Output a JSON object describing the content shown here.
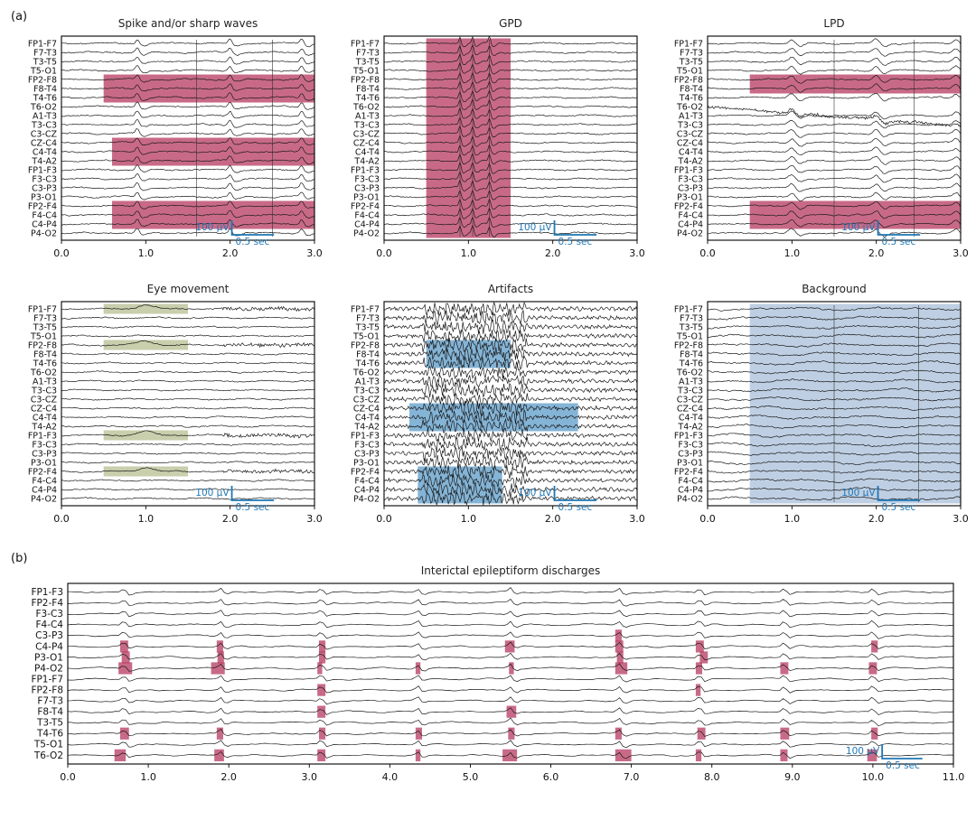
{
  "panel_labels": {
    "a": "(a)",
    "b": "(b)"
  },
  "chart_data": [
    {
      "type": "line",
      "title": "Spike and/or sharp waves",
      "xlim": [
        0,
        3
      ],
      "xticks": [
        "0.0",
        "1.0",
        "2.0",
        "3.0"
      ],
      "channels": [
        "FP1-F7",
        "F7-T3",
        "T3-T5",
        "T5-O1",
        "FP2-F8",
        "F8-T4",
        "T4-T6",
        "T6-O2",
        "A1-T3",
        "T3-C3",
        "C3-CZ",
        "CZ-C4",
        "C4-T4",
        "T4-A2",
        "FP1-F3",
        "F3-C3",
        "C3-P3",
        "P3-O1",
        "FP2-F4",
        "F4-C4",
        "C4-P4",
        "P4-O2"
      ],
      "highlights": [
        {
          "x0": 0.5,
          "x1": 3.0,
          "ch0": 4,
          "ch1": 6,
          "color": "#b5385f"
        },
        {
          "x0": 0.6,
          "x1": 3.0,
          "ch0": 11,
          "ch1": 13,
          "color": "#b5385f"
        },
        {
          "x0": 0.6,
          "x1": 3.0,
          "ch0": 18,
          "ch1": 20,
          "color": "#b5385f"
        }
      ],
      "events": [
        0.9,
        2.0,
        2.85
      ],
      "markers": [
        1.6,
        2.5
      ],
      "scalebar": {
        "amp": "100 μV",
        "time": "0.5 sec"
      }
    },
    {
      "type": "line",
      "title": "GPD",
      "xlim": [
        0,
        3
      ],
      "xticks": [
        "0.0",
        "1.0",
        "2.0",
        "3.0"
      ],
      "channels": [
        "FP1-F7",
        "F7-T3",
        "T3-T5",
        "T5-O1",
        "FP2-F8",
        "F8-T4",
        "T4-T6",
        "T6-O2",
        "A1-T3",
        "T3-C3",
        "C3-CZ",
        "CZ-C4",
        "C4-T4",
        "T4-A2",
        "FP1-F3",
        "F3-C3",
        "C3-P3",
        "P3-O1",
        "FP2-F4",
        "F4-C4",
        "C4-P4",
        "P4-O2"
      ],
      "highlights": [
        {
          "x0": 0.5,
          "x1": 1.5,
          "ch0": 0,
          "ch1": 21,
          "color": "#b5385f"
        }
      ],
      "events": [
        0.9,
        1.05,
        1.25
      ],
      "markers": [
        0.9,
        1.05,
        1.25
      ],
      "scalebar": {
        "amp": "100 μV",
        "time": "0.5 sec"
      }
    },
    {
      "type": "line",
      "title": "LPD",
      "xlim": [
        0,
        3
      ],
      "xticks": [
        "0.0",
        "1.0",
        "2.0",
        "3.0"
      ],
      "channels": [
        "FP1-F7",
        "F7-T3",
        "T3-T5",
        "T5-O1",
        "FP2-F8",
        "F8-T4",
        "T4-T6",
        "T6-O2",
        "A1-T3",
        "T3-C3",
        "C3-CZ",
        "CZ-C4",
        "C4-T4",
        "T4-A2",
        "FP1-F3",
        "F3-C3",
        "C3-P3",
        "P3-O1",
        "FP2-F4",
        "F4-C4",
        "C4-P4",
        "P4-O2"
      ],
      "highlights": [
        {
          "x0": 0.5,
          "x1": 3.0,
          "ch0": 4,
          "ch1": 5,
          "color": "#b5385f"
        },
        {
          "x0": 0.5,
          "x1": 3.0,
          "ch0": 18,
          "ch1": 20,
          "color": "#b5385f"
        }
      ],
      "events": [
        1.0,
        2.0,
        2.95
      ],
      "markers": [
        1.5,
        2.45
      ],
      "scalebar": {
        "amp": "100 μV",
        "time": "0.5 sec"
      }
    },
    {
      "type": "line",
      "title": "Eye movement",
      "xlim": [
        0,
        3
      ],
      "xticks": [
        "0.0",
        "1.0",
        "2.0",
        "3.0"
      ],
      "channels": [
        "FP1-F7",
        "F7-T3",
        "T3-T5",
        "T5-O1",
        "FP2-F8",
        "F8-T4",
        "T4-T6",
        "T6-O2",
        "A1-T3",
        "T3-C3",
        "C3-CZ",
        "CZ-C4",
        "C4-T4",
        "T4-A2",
        "FP1-F3",
        "F3-C3",
        "C3-P3",
        "P3-O1",
        "FP2-F4",
        "F4-C4",
        "C4-P4",
        "P4-O2"
      ],
      "highlights": [
        {
          "x0": 0.5,
          "x1": 1.5,
          "ch0": 0,
          "ch1": 0,
          "color": "#b7bd90"
        },
        {
          "x0": 0.5,
          "x1": 1.5,
          "ch0": 4,
          "ch1": 4,
          "color": "#b7bd90"
        },
        {
          "x0": 0.5,
          "x1": 1.5,
          "ch0": 14,
          "ch1": 14,
          "color": "#b7bd90"
        },
        {
          "x0": 0.5,
          "x1": 1.5,
          "ch0": 18,
          "ch1": 18,
          "color": "#b7bd90"
        }
      ],
      "events": [
        1.0,
        1.9
      ],
      "markers": [],
      "scalebar": {
        "amp": "100 μV",
        "time": "0.5 sec"
      }
    },
    {
      "type": "line",
      "title": "Artifacts",
      "xlim": [
        0,
        3
      ],
      "xticks": [
        "0.0",
        "1.0",
        "2.0",
        "3.0"
      ],
      "channels": [
        "FP1-F7",
        "F7-T3",
        "T3-T5",
        "T5-O1",
        "FP2-F8",
        "F8-T4",
        "T4-T6",
        "T6-O2",
        "A1-T3",
        "T3-C3",
        "C3-CZ",
        "CZ-C4",
        "C4-T4",
        "T4-A2",
        "FP1-F3",
        "F3-C3",
        "C3-P3",
        "P3-O1",
        "FP2-F4",
        "F4-C4",
        "C4-P4",
        "P4-O2"
      ],
      "highlights": [
        {
          "x0": 0.5,
          "x1": 1.5,
          "ch0": 4,
          "ch1": 6,
          "color": "#5b9bc8"
        },
        {
          "x0": 0.3,
          "x1": 2.3,
          "ch0": 11,
          "ch1": 13,
          "color": "#5b9bc8"
        },
        {
          "x0": 0.4,
          "x1": 1.4,
          "ch0": 18,
          "ch1": 21,
          "color": "#5b9bc8"
        }
      ],
      "events": [],
      "markers": [],
      "scalebar": {
        "amp": "100 μV",
        "time": "0.5 sec"
      }
    },
    {
      "type": "line",
      "title": "Background",
      "xlim": [
        0,
        3
      ],
      "xticks": [
        "0.0",
        "1.0",
        "2.0",
        "3.0"
      ],
      "channels": [
        "FP1-F7",
        "F7-T3",
        "T3-T5",
        "T5-O1",
        "FP2-F8",
        "F8-T4",
        "T4-T6",
        "T6-O2",
        "A1-T3",
        "T3-C3",
        "C3-CZ",
        "CZ-C4",
        "C4-T4",
        "T4-A2",
        "FP1-F3",
        "F3-C3",
        "C3-P3",
        "P3-O1",
        "FP2-F4",
        "F4-C4",
        "C4-P4",
        "P4-O2"
      ],
      "highlights": [
        {
          "x0": 0.5,
          "x1": 3.0,
          "ch0": 0,
          "ch1": 21,
          "color": "#a9bfd9"
        }
      ],
      "events": [],
      "markers": [
        1.5,
        2.5
      ],
      "scalebar": {
        "amp": "100 μV",
        "time": "0.5 sec"
      }
    },
    {
      "type": "line",
      "title": "Interictal epileptiform discharges",
      "xlim": [
        0,
        11
      ],
      "xticks": [
        "0.0",
        "1.0",
        "2.0",
        "3.0",
        "4.0",
        "5.0",
        "6.0",
        "7.0",
        "8.0",
        "9.0",
        "10.0",
        "11.0"
      ],
      "channels": [
        "FP1-F3",
        "FP2-F4",
        "F3-C3",
        "F4-C4",
        "C3-P3",
        "C4-P4",
        "P3-O1",
        "P4-O2",
        "FP1-F7",
        "FP2-F8",
        "F7-T3",
        "F8-T4",
        "T3-T5",
        "T4-T6",
        "T5-O1",
        "T6-O2"
      ],
      "events": [
        0.7,
        1.9,
        3.15,
        4.35,
        5.5,
        6.85,
        7.85,
        8.9,
        10.0
      ],
      "highlights": [
        {
          "x0": 0.65,
          "x1": 0.75,
          "ch0": 5,
          "ch1": 5
        },
        {
          "x0": 0.67,
          "x1": 0.77,
          "ch0": 6,
          "ch1": 6
        },
        {
          "x0": 0.63,
          "x1": 0.8,
          "ch0": 7,
          "ch1": 7
        },
        {
          "x0": 0.65,
          "x1": 0.76,
          "ch0": 13,
          "ch1": 13
        },
        {
          "x0": 0.58,
          "x1": 0.72,
          "ch0": 15,
          "ch1": 15
        },
        {
          "x0": 1.85,
          "x1": 1.93,
          "ch0": 5,
          "ch1": 5
        },
        {
          "x0": 1.86,
          "x1": 1.94,
          "ch0": 6,
          "ch1": 6
        },
        {
          "x0": 1.78,
          "x1": 1.95,
          "ch0": 7,
          "ch1": 7
        },
        {
          "x0": 1.85,
          "x1": 1.93,
          "ch0": 13,
          "ch1": 13
        },
        {
          "x0": 1.82,
          "x1": 1.94,
          "ch0": 15,
          "ch1": 15
        },
        {
          "x0": 3.12,
          "x1": 3.2,
          "ch0": 5,
          "ch1": 5
        },
        {
          "x0": 3.12,
          "x1": 3.2,
          "ch0": 6,
          "ch1": 6
        },
        {
          "x0": 3.1,
          "x1": 3.16,
          "ch0": 7,
          "ch1": 7
        },
        {
          "x0": 3.1,
          "x1": 3.2,
          "ch0": 9,
          "ch1": 9
        },
        {
          "x0": 3.1,
          "x1": 3.2,
          "ch0": 11,
          "ch1": 11
        },
        {
          "x0": 3.12,
          "x1": 3.2,
          "ch0": 13,
          "ch1": 13
        },
        {
          "x0": 3.1,
          "x1": 3.2,
          "ch0": 15,
          "ch1": 15
        },
        {
          "x0": 4.32,
          "x1": 4.38,
          "ch0": 7,
          "ch1": 7
        },
        {
          "x0": 4.32,
          "x1": 4.4,
          "ch0": 13,
          "ch1": 13
        },
        {
          "x0": 4.32,
          "x1": 4.38,
          "ch0": 15,
          "ch1": 15
        },
        {
          "x0": 5.43,
          "x1": 5.55,
          "ch0": 5,
          "ch1": 5
        },
        {
          "x0": 5.48,
          "x1": 5.54,
          "ch0": 7,
          "ch1": 7
        },
        {
          "x0": 5.45,
          "x1": 5.57,
          "ch0": 11,
          "ch1": 11
        },
        {
          "x0": 5.47,
          "x1": 5.55,
          "ch0": 13,
          "ch1": 13
        },
        {
          "x0": 5.4,
          "x1": 5.58,
          "ch0": 15,
          "ch1": 15
        },
        {
          "x0": 6.8,
          "x1": 6.88,
          "ch0": 4,
          "ch1": 4
        },
        {
          "x0": 6.8,
          "x1": 6.9,
          "ch0": 5,
          "ch1": 5
        },
        {
          "x0": 6.82,
          "x1": 6.9,
          "ch0": 6,
          "ch1": 6
        },
        {
          "x0": 6.8,
          "x1": 6.95,
          "ch0": 7,
          "ch1": 7
        },
        {
          "x0": 6.8,
          "x1": 6.88,
          "ch0": 13,
          "ch1": 13
        },
        {
          "x0": 6.8,
          "x1": 7.0,
          "ch0": 15,
          "ch1": 15
        },
        {
          "x0": 7.8,
          "x1": 7.9,
          "ch0": 5,
          "ch1": 5
        },
        {
          "x0": 7.85,
          "x1": 7.95,
          "ch0": 6,
          "ch1": 6
        },
        {
          "x0": 7.8,
          "x1": 7.88,
          "ch0": 7,
          "ch1": 7
        },
        {
          "x0": 7.8,
          "x1": 7.86,
          "ch0": 9,
          "ch1": 9
        },
        {
          "x0": 7.82,
          "x1": 7.92,
          "ch0": 13,
          "ch1": 13
        },
        {
          "x0": 7.8,
          "x1": 7.87,
          "ch0": 15,
          "ch1": 15
        },
        {
          "x0": 8.85,
          "x1": 8.95,
          "ch0": 7,
          "ch1": 7
        },
        {
          "x0": 8.85,
          "x1": 8.96,
          "ch0": 13,
          "ch1": 13
        },
        {
          "x0": 8.85,
          "x1": 8.94,
          "ch0": 15,
          "ch1": 15
        },
        {
          "x0": 9.98,
          "x1": 10.06,
          "ch0": 5,
          "ch1": 5
        },
        {
          "x0": 9.95,
          "x1": 10.05,
          "ch0": 7,
          "ch1": 7
        },
        {
          "x0": 9.98,
          "x1": 10.06,
          "ch0": 13,
          "ch1": 13
        },
        {
          "x0": 9.93,
          "x1": 10.05,
          "ch0": 15,
          "ch1": 15
        }
      ],
      "highlight_color": "#b5385f",
      "scalebar": {
        "amp": "100 μV",
        "time": "0.5 sec"
      }
    }
  ]
}
